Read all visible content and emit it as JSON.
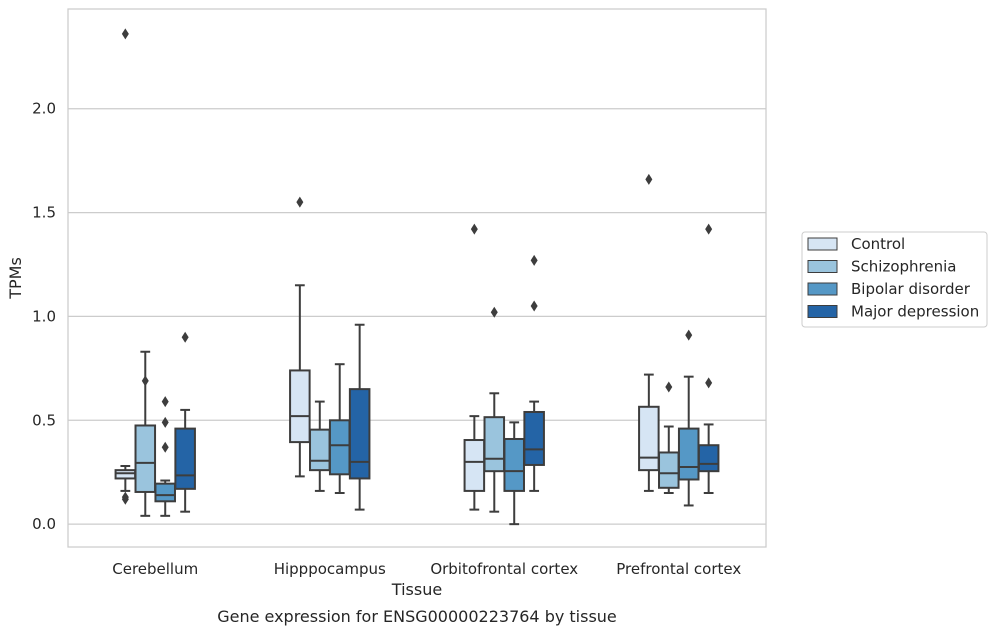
{
  "caption": "Gene expression for ENSG00000223764 by tissue",
  "chart_data": {
    "type": "box",
    "xlabel": "Tissue",
    "ylabel": "TPMs",
    "ylim": [
      -0.11,
      2.48
    ],
    "yticks": [
      0.0,
      0.5,
      1.0,
      1.5,
      2.0
    ],
    "ytick_labels": [
      "0.0",
      "0.5",
      "1.0",
      "1.5",
      "2.0"
    ],
    "grid": "horizontal",
    "legend_position": "right-outside",
    "categories": [
      "Cerebellum",
      "Hipppocampus",
      "Orbitofrontal cortex",
      "Prefrontal cortex"
    ],
    "series": [
      {
        "name": "Control",
        "color": "#d6e5f4",
        "boxes": [
          {
            "whislo": 0.16,
            "q1": 0.22,
            "med": 0.245,
            "q3": 0.26,
            "whishi": 0.28,
            "fliers": [
              0.12,
              0.13,
              2.36
            ]
          },
          {
            "whislo": 0.23,
            "q1": 0.395,
            "med": 0.52,
            "q3": 0.74,
            "whishi": 1.15,
            "fliers": [
              1.55
            ]
          },
          {
            "whislo": 0.07,
            "q1": 0.16,
            "med": 0.3,
            "q3": 0.405,
            "whishi": 0.52,
            "fliers": [
              1.42
            ]
          },
          {
            "whislo": 0.16,
            "q1": 0.26,
            "med": 0.32,
            "q3": 0.565,
            "whishi": 0.72,
            "fliers": [
              1.66
            ]
          }
        ]
      },
      {
        "name": "Schizophrenia",
        "color": "#9ac4dd",
        "boxes": [
          {
            "whislo": 0.04,
            "q1": 0.155,
            "med": 0.295,
            "q3": 0.475,
            "whishi": 0.83,
            "fliers": [
              0.69
            ]
          },
          {
            "whislo": 0.16,
            "q1": 0.26,
            "med": 0.305,
            "q3": 0.455,
            "whishi": 0.59,
            "fliers": []
          },
          {
            "whislo": 0.06,
            "q1": 0.255,
            "med": 0.315,
            "q3": 0.515,
            "whishi": 0.63,
            "fliers": [
              1.02
            ]
          },
          {
            "whislo": 0.15,
            "q1": 0.175,
            "med": 0.245,
            "q3": 0.345,
            "whishi": 0.47,
            "fliers": [
              0.66
            ]
          }
        ]
      },
      {
        "name": "Bipolar disorder",
        "color": "#5598c6",
        "boxes": [
          {
            "whislo": 0.04,
            "q1": 0.11,
            "med": 0.14,
            "q3": 0.195,
            "whishi": 0.21,
            "fliers": [
              0.37,
              0.49,
              0.59
            ]
          },
          {
            "whislo": 0.15,
            "q1": 0.24,
            "med": 0.38,
            "q3": 0.5,
            "whishi": 0.77,
            "fliers": []
          },
          {
            "whislo": 0.0,
            "q1": 0.16,
            "med": 0.255,
            "q3": 0.41,
            "whishi": 0.49,
            "fliers": []
          },
          {
            "whislo": 0.09,
            "q1": 0.215,
            "med": 0.275,
            "q3": 0.46,
            "whishi": 0.71,
            "fliers": [
              0.91
            ]
          }
        ]
      },
      {
        "name": "Major depression",
        "color": "#2464a6",
        "boxes": [
          {
            "whislo": 0.06,
            "q1": 0.17,
            "med": 0.235,
            "q3": 0.46,
            "whishi": 0.55,
            "fliers": [
              0.9
            ]
          },
          {
            "whislo": 0.07,
            "q1": 0.22,
            "med": 0.3,
            "q3": 0.65,
            "whishi": 0.96,
            "fliers": []
          },
          {
            "whislo": 0.16,
            "q1": 0.285,
            "med": 0.36,
            "q3": 0.54,
            "whishi": 0.59,
            "fliers": [
              1.05,
              1.27
            ]
          },
          {
            "whislo": 0.15,
            "q1": 0.255,
            "med": 0.29,
            "q3": 0.38,
            "whishi": 0.48,
            "fliers": [
              0.68,
              1.42
            ]
          }
        ]
      }
    ]
  }
}
